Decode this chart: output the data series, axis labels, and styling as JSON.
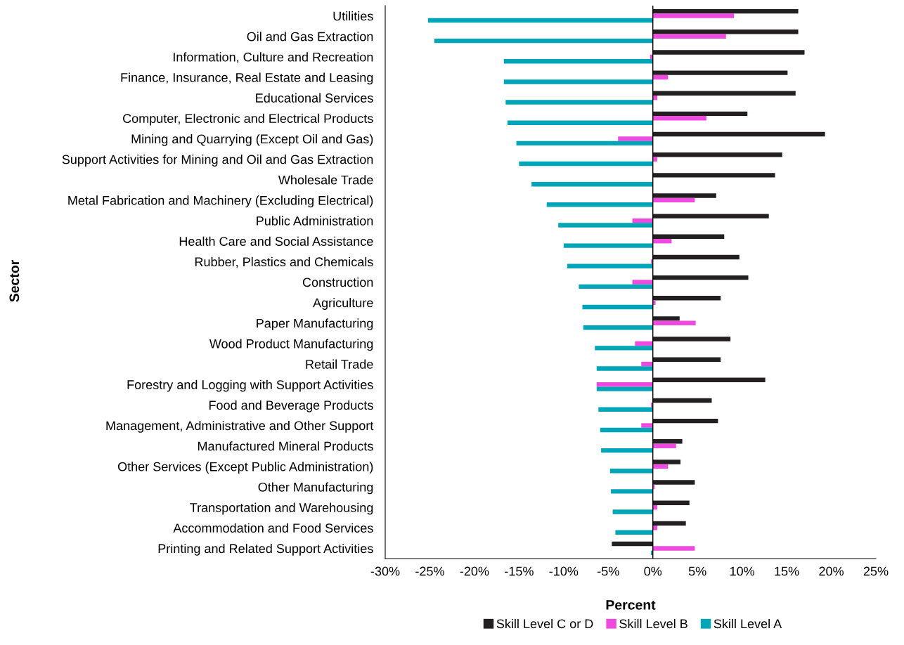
{
  "chart_data": {
    "type": "bar",
    "orientation": "horizontal",
    "xlabel": "Percent",
    "ylabel": "Sector",
    "categories": [
      "Utilities",
      "Oil and Gas Extraction",
      "Information, Culture and Recreation",
      "Finance, Insurance, Real Estate and Leasing",
      "Educational Services",
      "Computer, Electronic and Electrical Products",
      "Mining and Quarrying (Except Oil and Gas)",
      "Support Activities for Mining and Oil and Gas Extraction",
      "Wholesale Trade",
      "Metal Fabrication and Machinery (Excluding Electrical)",
      "Public Administration",
      "Health Care and Social Assistance",
      "Rubber, Plastics and Chemicals",
      "Construction",
      "Agriculture",
      "Paper Manufacturing",
      "Wood Product Manufacturing",
      "Retail Trade",
      "Forestry and Logging with Support Activities",
      "Food and Beverage Products",
      "Management, Administrative and Other Support",
      "Manufactured Mineral Products",
      "Other Services (Except Public Administration)",
      "Other Manufacturing",
      "Transportation and Warehousing",
      "Accommodation and Food Services",
      "Printing and Related Support Activities"
    ],
    "series": [
      {
        "name": "Skill Level C or D",
        "color": "#231f20",
        "values": [
          16.3,
          16.3,
          17.0,
          15.1,
          16.0,
          10.6,
          19.3,
          14.5,
          13.7,
          7.1,
          13.0,
          8.0,
          9.7,
          10.7,
          7.6,
          3.0,
          8.7,
          7.6,
          12.6,
          6.6,
          7.3,
          3.3,
          3.1,
          4.7,
          4.1,
          3.7,
          -4.6
        ]
      },
      {
        "name": "Skill Level B",
        "color": "#ee4adf",
        "values": [
          9.1,
          8.2,
          -0.3,
          1.7,
          0.5,
          6.0,
          -3.9,
          0.5,
          0,
          4.7,
          -2.3,
          2.1,
          -0.2,
          -2.3,
          0.3,
          4.8,
          -2.0,
          -1.3,
          -6.3,
          -0.2,
          -1.3,
          2.6,
          1.7,
          0.2,
          0.5,
          0.5,
          4.7
        ]
      },
      {
        "name": "Skill Level A",
        "color": "#00a5b8",
        "values": [
          -25.2,
          -24.5,
          -16.7,
          -16.7,
          -16.5,
          -16.3,
          -15.3,
          -15.0,
          -13.6,
          -11.9,
          -10.6,
          -10.0,
          -9.6,
          -8.3,
          -7.9,
          -7.8,
          -6.5,
          -6.3,
          -6.3,
          -6.1,
          -5.9,
          -5.8,
          -4.8,
          -4.7,
          -4.5,
          -4.2,
          -0.2
        ]
      }
    ],
    "xlim": [
      -30,
      25
    ],
    "xticks": [
      {
        "value": -30,
        "label": "-30%"
      },
      {
        "value": -25,
        "label": "-25%"
      },
      {
        "value": -20,
        "label": "-20%"
      },
      {
        "value": -15,
        "label": "-15%"
      },
      {
        "value": -10,
        "label": "-10%"
      },
      {
        "value": -5,
        "label": "-5%"
      },
      {
        "value": 0,
        "label": "0%"
      },
      {
        "value": 5,
        "label": "5%"
      },
      {
        "value": 10,
        "label": "10%"
      },
      {
        "value": 15,
        "label": "15%"
      },
      {
        "value": 20,
        "label": "20%"
      },
      {
        "value": 25,
        "label": "25%"
      }
    ],
    "ref_lines": [
      {
        "axis": "x",
        "value": 0,
        "color": "#000000"
      }
    ],
    "legend": "bottom"
  }
}
